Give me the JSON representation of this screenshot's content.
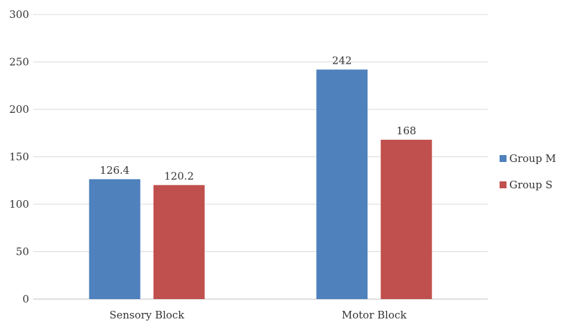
{
  "chart_data": {
    "type": "bar",
    "categories": [
      "Sensory Block",
      "Motor Block"
    ],
    "series": [
      {
        "name": "Group M",
        "values": [
          126.4,
          242
        ],
        "labels": [
          "126.4",
          "242"
        ],
        "color": "#4f81bd"
      },
      {
        "name": "Group S",
        "values": [
          120.2,
          168
        ],
        "labels": [
          "120.2",
          "168"
        ],
        "color": "#c0504d"
      }
    ],
    "yticks": [
      "0",
      "50",
      "100",
      "150",
      "200",
      "250",
      "300"
    ],
    "ylim": [
      0,
      300
    ],
    "grid": true,
    "legend_position": "right"
  }
}
